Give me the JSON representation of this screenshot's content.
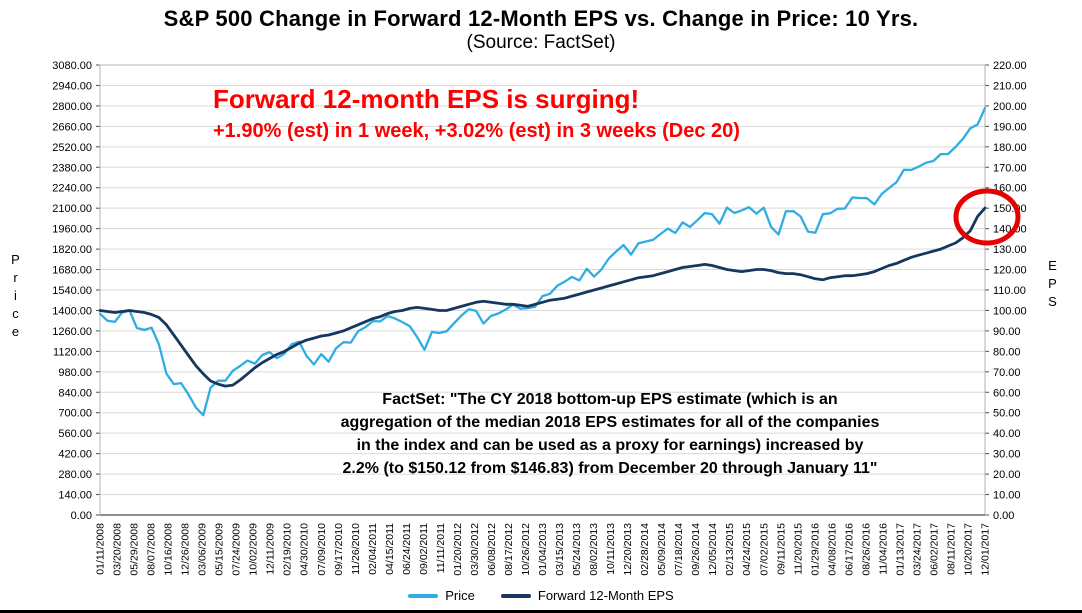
{
  "page": {
    "title": "S&P 500 Change in Forward 12-Month EPS vs. Change in Price: 10 Yrs.",
    "subtitle": "(Source: FactSet)"
  },
  "annotations": {
    "surge_line1": "Forward 12-month EPS is surging!",
    "surge_line2": "+1.90% (est) in 1 week, +3.02% (est) in 3 weeks (Dec 20)",
    "factset_quote_lines": [
      "FactSet: \"The CY 2018 bottom-up EPS estimate (which is an",
      "aggregation of the median 2018 EPS estimates for all of the companies",
      "in the index and can be used as a proxy for earnings) increased by",
      "2.2% (to $150.12 from $146.83) from December 20 through January 11\""
    ]
  },
  "colors": {
    "grid": "#d9d9d9",
    "frame": "#b3b3b3",
    "axis_line": "#4d4d4d",
    "annotation_red": "#ff0000",
    "highlight_red": "#e60000",
    "price_blue": "#2fade3",
    "eps_navy": "#17375e"
  },
  "chart_data": {
    "type": "line",
    "title": "S&P 500 Change in Forward 12-Month EPS vs. Change in Price: 10 Yrs.",
    "subtitle": "(Source: FactSet)",
    "grid": true,
    "legend_position": "bottom-center",
    "left_axis": {
      "label": "Price",
      "range": [
        0,
        3080
      ],
      "step": 140,
      "tick_format": "0.00"
    },
    "right_axis": {
      "label": "EPS",
      "range": [
        0,
        220
      ],
      "step": 10,
      "tick_format": "0.00"
    },
    "x_tick_labels": [
      "01/11/2008",
      "03/20/2008",
      "05/29/2008",
      "08/07/2008",
      "10/16/2008",
      "12/26/2008",
      "03/06/2009",
      "05/15/2009",
      "07/24/2009",
      "10/02/2009",
      "12/11/2009",
      "02/19/2010",
      "04/30/2010",
      "07/09/2010",
      "09/17/2010",
      "11/26/2010",
      "02/04/2011",
      "04/15/2011",
      "06/24/2011",
      "09/02/2011",
      "11/11/2011",
      "01/20/2012",
      "03/30/2012",
      "06/08/2012",
      "08/17/2012",
      "10/26/2012",
      "01/04/2013",
      "03/15/2013",
      "05/24/2013",
      "08/02/2013",
      "10/11/2013",
      "12/20/2013",
      "02/28/2014",
      "05/09/2014",
      "07/18/2014",
      "09/26/2014",
      "12/05/2014",
      "02/13/2015",
      "04/24/2015",
      "07/02/2015",
      "09/11/2015",
      "11/20/2015",
      "01/29/2016",
      "04/08/2016",
      "06/17/2016",
      "08/26/2016",
      "11/04/2016",
      "01/13/2017",
      "03/24/2017",
      "06/02/2017",
      "08/11/2017",
      "10/20/2017",
      "12/01/2017"
    ],
    "series": [
      {
        "id": "price-line",
        "name": "Price",
        "axis": "left",
        "color": "#2fade3",
        "values": [
          1378,
          1330,
          1322,
          1385,
          1400,
          1280,
          1267,
          1282,
          1166,
          968,
          896,
          903,
          825,
          735,
          683,
          872,
          919,
          919,
          987,
          1020,
          1057,
          1036,
          1095,
          1115,
          1073,
          1104,
          1169,
          1186,
          1089,
          1030,
          1101,
          1049,
          1141,
          1183,
          1180,
          1257,
          1286,
          1327,
          1325,
          1363,
          1345,
          1320,
          1292,
          1218,
          1131,
          1253,
          1246,
          1257,
          1312,
          1365,
          1408,
          1397,
          1310,
          1362,
          1379,
          1406,
          1440,
          1412,
          1416,
          1426,
          1498,
          1514,
          1569,
          1597,
          1630,
          1606,
          1685,
          1632,
          1681,
          1756,
          1805,
          1848,
          1782,
          1859,
          1872,
          1883,
          1923,
          1960,
          1930,
          2003,
          1972,
          2018,
          2067,
          2058,
          1994,
          2104,
          2067,
          2085,
          2107,
          2063,
          2103,
          1972,
          1920,
          2079,
          2080,
          2043,
          1940,
          1932,
          2059,
          2065,
          2096,
          2098,
          2173,
          2170,
          2168,
          2126,
          2198,
          2238,
          2278,
          2363,
          2362,
          2384,
          2411,
          2423,
          2470,
          2471,
          2519,
          2575,
          2647,
          2673,
          2786
        ]
      },
      {
        "id": "forward-eps-line",
        "name": "Forward 12-Month EPS",
        "axis": "right",
        "color": "#17375e",
        "values": [
          100,
          99.5,
          99,
          99.5,
          100,
          99.5,
          99,
          98,
          96.5,
          93,
          88,
          83,
          78,
          73,
          69,
          65.5,
          64,
          63,
          63.5,
          66,
          69,
          72,
          74.5,
          76.5,
          78.5,
          80,
          82,
          84,
          85.5,
          86.5,
          87.5,
          88,
          89,
          90,
          91.5,
          93,
          94.5,
          96,
          97,
          98.5,
          99.5,
          100,
          101,
          101.5,
          101,
          100.5,
          100,
          100,
          101,
          102,
          103,
          104,
          104.5,
          104,
          103.5,
          103,
          103,
          102.5,
          102,
          103,
          104,
          105,
          105.5,
          106,
          107,
          108,
          109,
          110,
          111,
          112,
          113,
          114,
          115,
          116,
          116.5,
          117,
          118,
          119,
          120,
          121,
          121.5,
          122,
          122.5,
          122,
          121,
          120,
          119.5,
          119,
          119.5,
          120,
          120,
          119.5,
          118.5,
          118,
          118,
          117.5,
          116.5,
          115.5,
          115,
          116,
          116.5,
          117,
          117,
          117.5,
          118,
          119,
          120.5,
          122,
          123,
          124.5,
          126,
          127,
          128,
          129,
          130,
          131.5,
          133,
          135.5,
          139,
          146,
          150.1
        ]
      }
    ],
    "highlight": {
      "shape": "ellipse",
      "target": "end-of-forward-eps-line",
      "color": "#e60000"
    }
  }
}
